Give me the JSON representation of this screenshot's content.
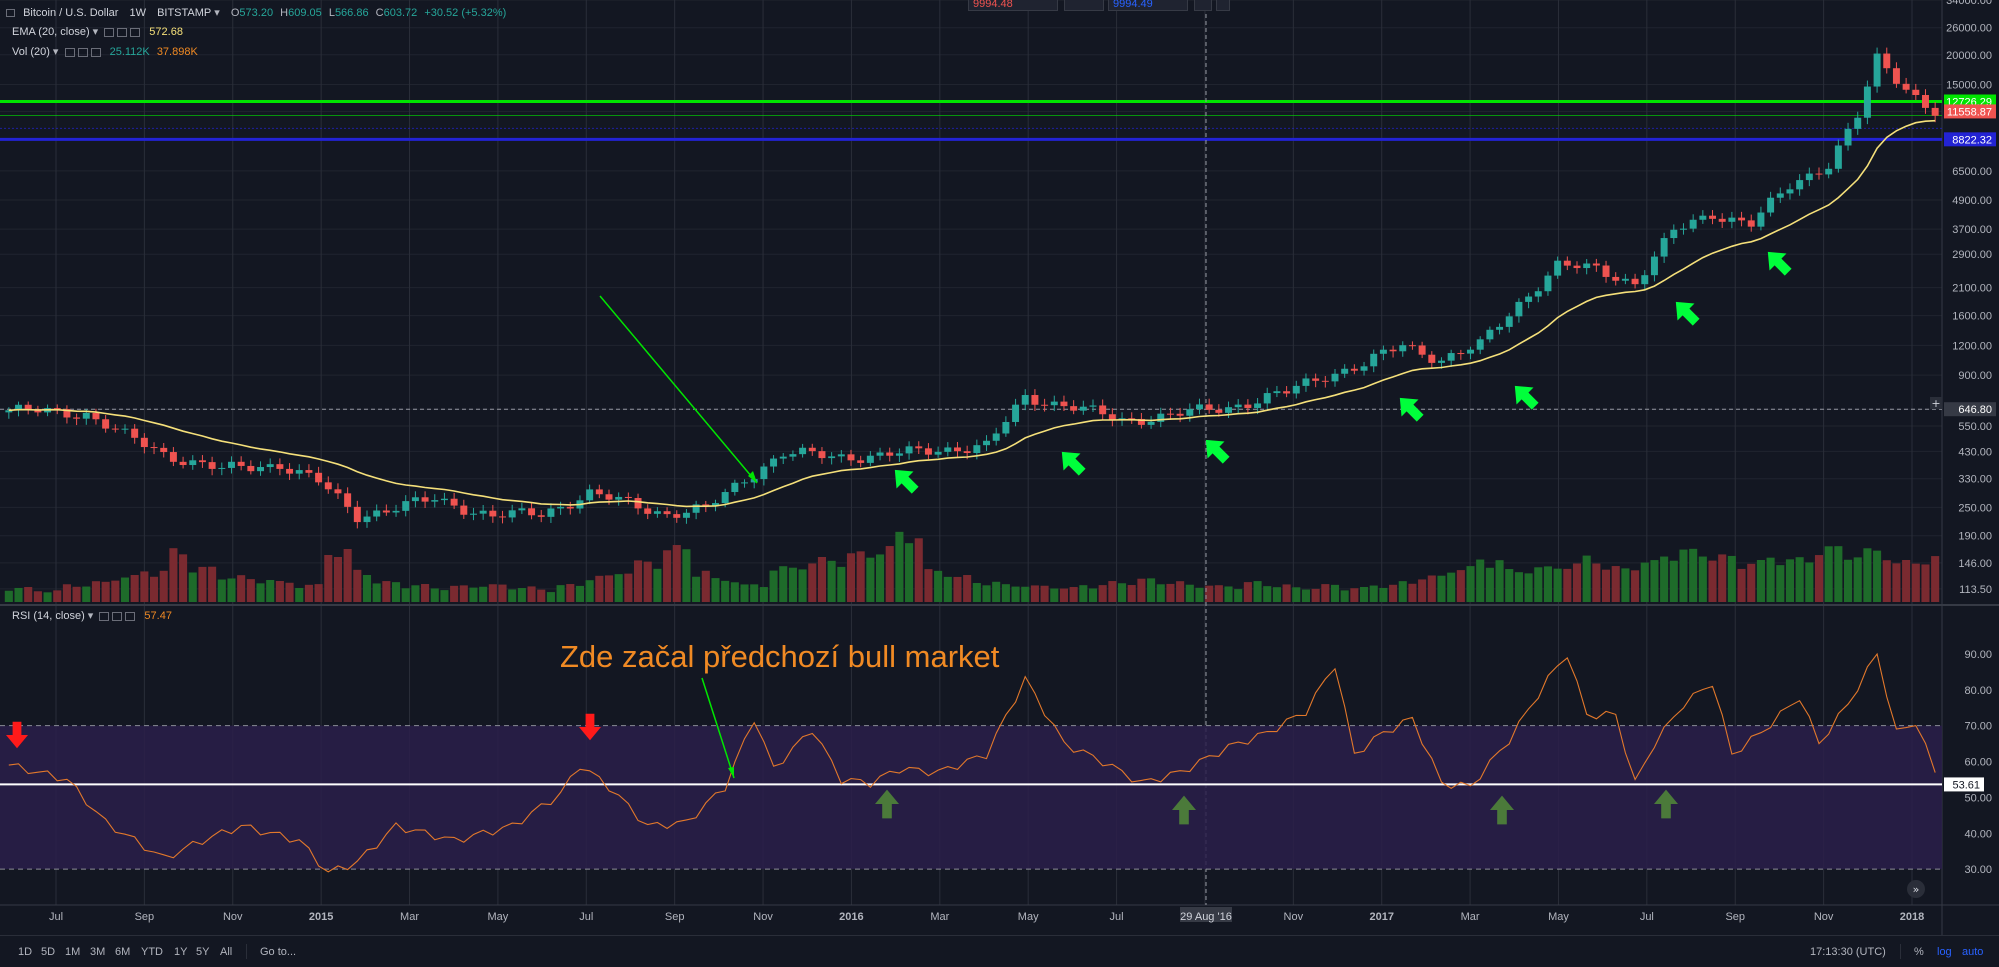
{
  "header": {
    "symbol": "Bitcoin / U.S. Dollar",
    "interval": "1W",
    "exchange": "BITSTAMP",
    "o_label": "O",
    "o_value": "573.20",
    "h_label": "H",
    "h_value": "609.05",
    "l_label": "L",
    "l_value": "566.86",
    "c_label": "C",
    "c_value": "603.72",
    "change": "+30.52 (+5.32%)"
  },
  "indicators": {
    "ema_label": "EMA (20, close)",
    "ema_value": "572.68",
    "vol_label": "Vol (20)",
    "vol_value1": "25.112K",
    "vol_value2": "37.898K",
    "rsi_label": "RSI (14, close)",
    "rsi_value": "57.47"
  },
  "toolbox": {
    "sell_value": "9994.48",
    "buy_value": "9994.49"
  },
  "bottombar": {
    "timeframes": [
      "1D",
      "5D",
      "1M",
      "3M",
      "6M",
      "YTD",
      "1Y",
      "5Y",
      "All"
    ],
    "goto": "Go to...",
    "clock": "17:13:30 (UTC)",
    "percent": "%",
    "log": "log",
    "auto": "auto"
  },
  "colors": {
    "background": "#131722",
    "grid": "#2a2e39",
    "up": "#26a69a",
    "down": "#ef5350",
    "ema": "#f5e07a",
    "rsi": "#e2782b",
    "resistance": "#00e600",
    "support": "#2323d4",
    "rsi_band": "#2a1f4a",
    "arrow_green": "#00ff3b",
    "arrow_red": "#ff1a1a",
    "arrow_dark": "#4b7a3a",
    "annotation": "#f08a24"
  },
  "chart_data": [
    {
      "type": "candlestick",
      "title": "Bitcoin / U.S. Dollar · 1W · BITSTAMP",
      "scale": "log",
      "ylim": [
        100,
        34000
      ],
      "y_ticks": [
        "34000.00",
        "26000.00",
        "20000.00",
        "15000.00",
        "11558.87",
        "8822.32",
        "6500.00",
        "4900.00",
        "3700.00",
        "2900.00",
        "2100.00",
        "1600.00",
        "1200.00",
        "900.00",
        "646.80",
        "550.00",
        "430.00",
        "330.00",
        "250.00",
        "190.00",
        "146.00",
        "113.50"
      ],
      "x_ticks": [
        "Jul",
        "Sep",
        "Nov",
        "2015",
        "Mar",
        "May",
        "Jul",
        "Sep",
        "Nov",
        "2016",
        "Mar",
        "May",
        "Jul",
        "29 Aug '16",
        "Nov",
        "2017",
        "Mar",
        "May",
        "Jul",
        "Sep",
        "Nov",
        "2018"
      ],
      "price_badges": [
        {
          "value": "12726.29",
          "color": "#00e600"
        },
        {
          "value": "11558.87",
          "color": "#ef5350"
        },
        {
          "value": "8822.32",
          "color": "#2323d4"
        },
        {
          "value": "646.80",
          "color": "#363a45"
        }
      ],
      "close_keypoints": [
        {
          "t": 0,
          "v": 640
        },
        {
          "t": 8,
          "v": 620
        },
        {
          "t": 12,
          "v": 500
        },
        {
          "t": 16,
          "v": 420
        },
        {
          "t": 22,
          "v": 360
        },
        {
          "t": 28,
          "v": 380
        },
        {
          "t": 32,
          "v": 320
        },
        {
          "t": 36,
          "v": 230
        },
        {
          "t": 40,
          "v": 250
        },
        {
          "t": 44,
          "v": 270
        },
        {
          "t": 50,
          "v": 230
        },
        {
          "t": 55,
          "v": 235
        },
        {
          "t": 60,
          "v": 285
        },
        {
          "t": 64,
          "v": 260
        },
        {
          "t": 68,
          "v": 235
        },
        {
          "t": 72,
          "v": 245
        },
        {
          "t": 76,
          "v": 330
        },
        {
          "t": 80,
          "v": 420
        },
        {
          "t": 86,
          "v": 410
        },
        {
          "t": 90,
          "v": 410
        },
        {
          "t": 96,
          "v": 440
        },
        {
          "t": 101,
          "v": 450
        },
        {
          "t": 105,
          "v": 730
        },
        {
          "t": 110,
          "v": 660
        },
        {
          "t": 115,
          "v": 580
        },
        {
          "t": 120,
          "v": 610
        },
        {
          "t": 126,
          "v": 660
        },
        {
          "t": 132,
          "v": 760
        },
        {
          "t": 136,
          "v": 900
        },
        {
          "t": 140,
          "v": 1000
        },
        {
          "t": 144,
          "v": 1200
        },
        {
          "t": 148,
          "v": 1050
        },
        {
          "t": 152,
          "v": 1200
        },
        {
          "t": 156,
          "v": 1800
        },
        {
          "t": 160,
          "v": 2600
        },
        {
          "t": 164,
          "v": 2500
        },
        {
          "t": 168,
          "v": 2200
        },
        {
          "t": 172,
          "v": 3600
        },
        {
          "t": 176,
          "v": 4300
        },
        {
          "t": 180,
          "v": 3900
        },
        {
          "t": 184,
          "v": 5600
        },
        {
          "t": 188,
          "v": 7000
        },
        {
          "t": 191,
          "v": 11000
        },
        {
          "t": 193,
          "v": 19000
        },
        {
          "t": 196,
          "v": 14500
        },
        {
          "t": 199,
          "v": 11558
        }
      ],
      "resistance_level": 12726.29,
      "support_level": 8822.32,
      "current_line": 646.8
    },
    {
      "type": "bar",
      "title": "Vol (20)",
      "volume_profile": [
        0.25,
        0.2,
        0.3,
        0.35,
        0.45,
        0.55,
        0.9,
        0.6,
        0.45,
        0.4,
        0.35,
        0.3,
        0.9,
        0.55,
        0.35,
        0.3,
        0.25,
        0.28,
        0.3,
        0.26,
        0.22,
        0.3,
        0.45,
        0.55,
        0.7,
        0.95,
        0.55,
        0.4,
        0.3,
        0.6,
        0.7,
        0.75,
        0.85,
        0.95,
        1.2,
        0.55,
        0.45,
        0.35,
        0.3,
        0.28,
        0.25,
        0.3,
        0.35,
        0.4,
        0.35,
        0.3,
        0.28,
        0.35,
        0.3,
        0.25,
        0.3,
        0.25,
        0.3,
        0.35,
        0.45,
        0.6,
        0.75,
        0.55,
        0.6,
        0.65,
        0.8,
        0.6,
        0.7,
        0.85,
        0.9,
        0.8,
        0.7,
        0.8,
        0.75,
        0.95,
        0.85,
        0.9,
        0.7,
        0.8
      ]
    },
    {
      "type": "line",
      "title": "RSI (14, close)",
      "ylim": [
        20,
        100
      ],
      "y_ticks": [
        "90.00",
        "80.00",
        "70.00",
        "60.00",
        "53.61",
        "50.00",
        "40.00",
        "30.00"
      ],
      "band": [
        30,
        70
      ],
      "reference_line": 53.61,
      "rsi_keypoints": [
        {
          "t": 0,
          "v": 59
        },
        {
          "t": 6,
          "v": 55
        },
        {
          "t": 10,
          "v": 43
        },
        {
          "t": 16,
          "v": 33
        },
        {
          "t": 20,
          "v": 38
        },
        {
          "t": 24,
          "v": 42
        },
        {
          "t": 30,
          "v": 38
        },
        {
          "t": 33,
          "v": 29
        },
        {
          "t": 36,
          "v": 32
        },
        {
          "t": 40,
          "v": 42
        },
        {
          "t": 46,
          "v": 38
        },
        {
          "t": 52,
          "v": 42
        },
        {
          "t": 57,
          "v": 51
        },
        {
          "t": 59,
          "v": 59
        },
        {
          "t": 62,
          "v": 53
        },
        {
          "t": 66,
          "v": 42
        },
        {
          "t": 70,
          "v": 43
        },
        {
          "t": 74,
          "v": 53
        },
        {
          "t": 77,
          "v": 72
        },
        {
          "t": 79,
          "v": 58
        },
        {
          "t": 83,
          "v": 69
        },
        {
          "t": 86,
          "v": 55
        },
        {
          "t": 89,
          "v": 54
        },
        {
          "t": 92,
          "v": 58
        },
        {
          "t": 96,
          "v": 57
        },
        {
          "t": 101,
          "v": 62
        },
        {
          "t": 105,
          "v": 83
        },
        {
          "t": 109,
          "v": 65
        },
        {
          "t": 113,
          "v": 60
        },
        {
          "t": 117,
          "v": 54
        },
        {
          "t": 121,
          "v": 57
        },
        {
          "t": 126,
          "v": 64
        },
        {
          "t": 130,
          "v": 68
        },
        {
          "t": 134,
          "v": 74
        },
        {
          "t": 137,
          "v": 87
        },
        {
          "t": 139,
          "v": 62
        },
        {
          "t": 142,
          "v": 68
        },
        {
          "t": 145,
          "v": 72
        },
        {
          "t": 148,
          "v": 54
        },
        {
          "t": 151,
          "v": 53
        },
        {
          "t": 155,
          "v": 66
        },
        {
          "t": 159,
          "v": 83
        },
        {
          "t": 161,
          "v": 90
        },
        {
          "t": 163,
          "v": 73
        },
        {
          "t": 166,
          "v": 73
        },
        {
          "t": 168,
          "v": 54
        },
        {
          "t": 170,
          "v": 65
        },
        {
          "t": 173,
          "v": 76
        },
        {
          "t": 176,
          "v": 82
        },
        {
          "t": 178,
          "v": 62
        },
        {
          "t": 181,
          "v": 68
        },
        {
          "t": 185,
          "v": 78
        },
        {
          "t": 187,
          "v": 65
        },
        {
          "t": 190,
          "v": 76
        },
        {
          "t": 193,
          "v": 90
        },
        {
          "t": 195,
          "v": 68
        },
        {
          "t": 197,
          "v": 71
        },
        {
          "t": 199,
          "v": 57
        }
      ]
    }
  ],
  "annotation": {
    "text": "Zde začal předchozí bull market"
  }
}
